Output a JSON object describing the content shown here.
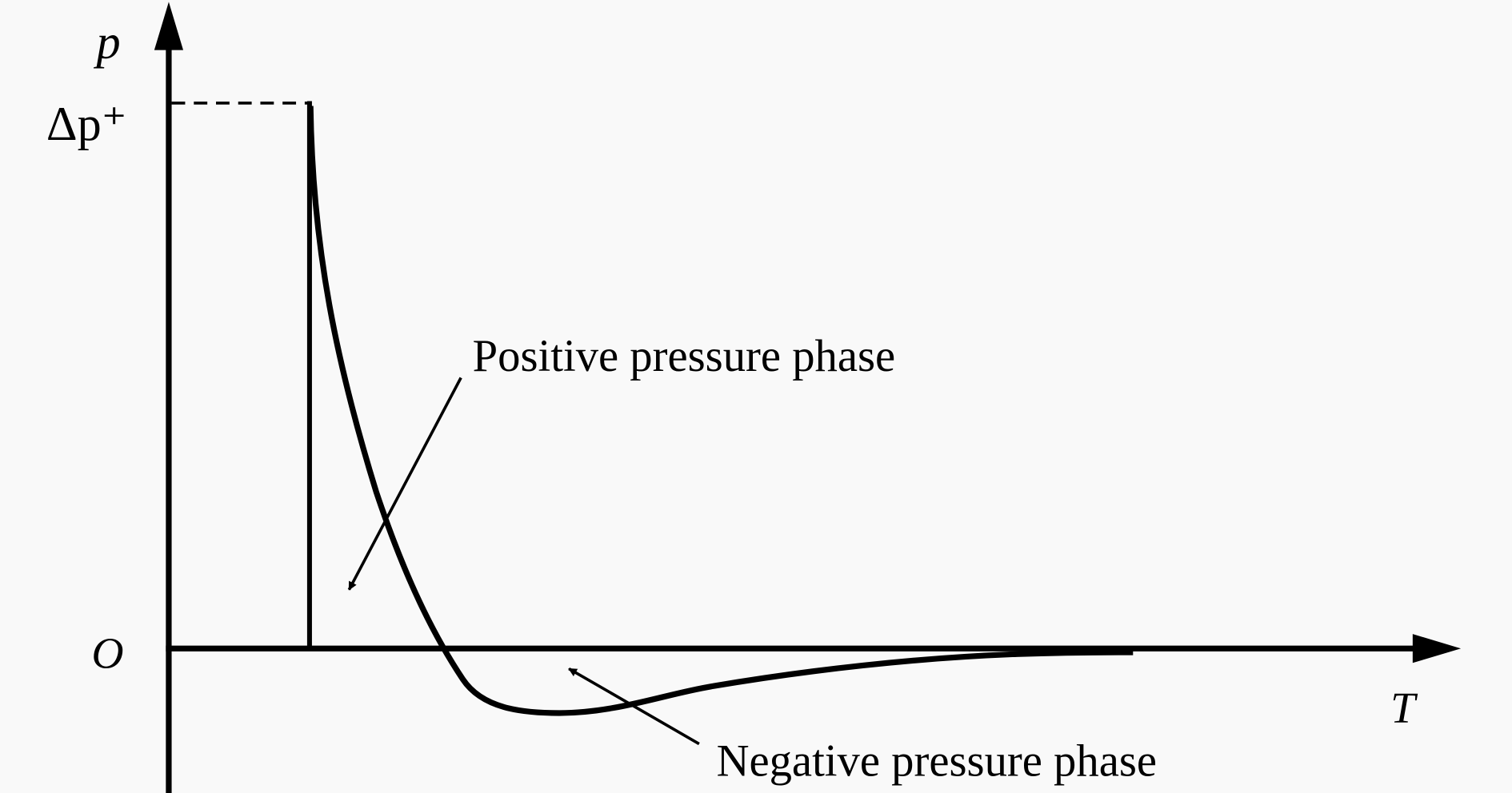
{
  "axes": {
    "y_label": "p",
    "peak_label": "Δp⁺",
    "origin_label": "O",
    "x_label": "T"
  },
  "annotations": {
    "positive": "Positive pressure phase",
    "negative": "Negative pressure phase"
  }
}
